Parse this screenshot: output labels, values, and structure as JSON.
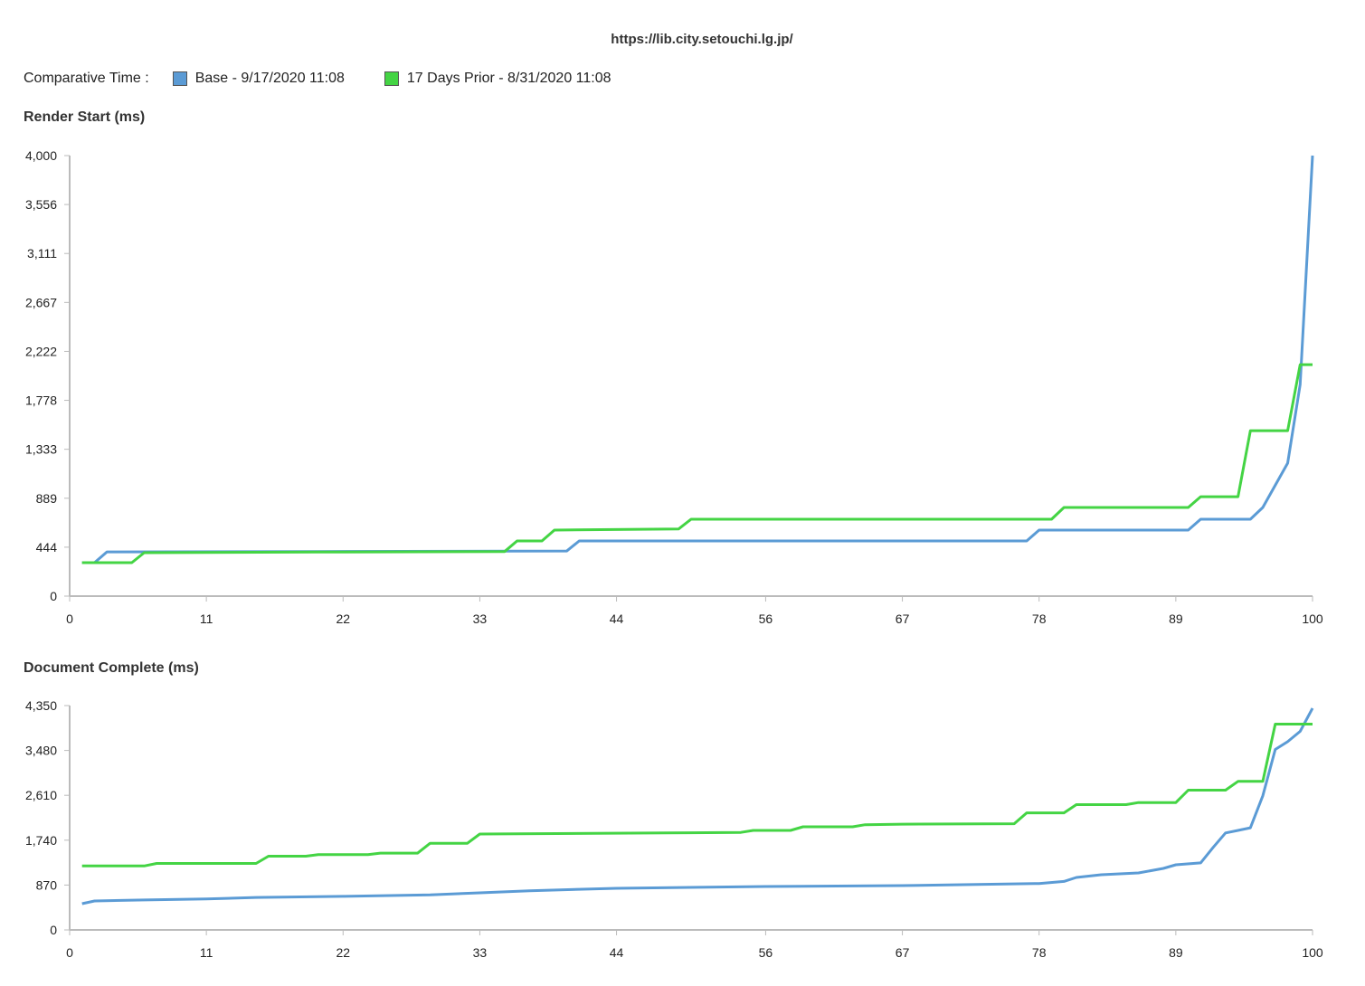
{
  "header": {
    "url": "https://lib.city.setouchi.lg.jp/"
  },
  "legend": {
    "label": "Comparative Time :",
    "items": [
      {
        "name": "Base - 9/17/2020 11:08",
        "color": "#5b9bd5"
      },
      {
        "name": "17 Days Prior - 8/31/2020 11:08",
        "color": "#44d444"
      }
    ]
  },
  "chart_data": [
    {
      "type": "line",
      "title": "Render Start (ms)",
      "xlabel": "",
      "ylabel": "",
      "xlim": [
        0,
        100
      ],
      "ylim": [
        0,
        4000
      ],
      "xticks": [
        "0",
        "11",
        "22",
        "33",
        "44",
        "56",
        "67",
        "78",
        "89",
        "100"
      ],
      "yticks": [
        "0",
        "444",
        "889",
        "1,333",
        "1,778",
        "2,222",
        "2,667",
        "3,111",
        "3,556",
        "4,000"
      ],
      "series": [
        {
          "name": "Base - 9/17/2020 11:08",
          "color": "#5b9bd5",
          "points": [
            [
              1,
              304
            ],
            [
              2,
              304
            ],
            [
              3,
              402
            ],
            [
              20,
              405
            ],
            [
              40,
              410
            ],
            [
              41,
              501
            ],
            [
              77,
              501
            ],
            [
              78,
              600
            ],
            [
              90,
              600
            ],
            [
              91,
              698
            ],
            [
              95,
              698
            ],
            [
              96,
              805
            ],
            [
              98,
              1207
            ],
            [
              99,
              1921
            ],
            [
              100,
              4000
            ]
          ]
        },
        {
          "name": "17 Days Prior - 8/31/2020 11:08",
          "color": "#44d444",
          "points": [
            [
              1,
              304
            ],
            [
              5,
              304
            ],
            [
              6,
              394
            ],
            [
              20,
              400
            ],
            [
              35,
              405
            ],
            [
              36,
              501
            ],
            [
              38,
              501
            ],
            [
              39,
              600
            ],
            [
              49,
              610
            ],
            [
              50,
              698
            ],
            [
              79,
              698
            ],
            [
              80,
              805
            ],
            [
              90,
              805
            ],
            [
              91,
              903
            ],
            [
              94,
              903
            ],
            [
              95,
              1502
            ],
            [
              98,
              1502
            ],
            [
              99,
              2102
            ],
            [
              100,
              2102
            ]
          ]
        }
      ]
    },
    {
      "type": "line",
      "title": "Document Complete (ms)",
      "xlabel": "",
      "ylabel": "",
      "xlim": [
        0,
        100
      ],
      "ylim": [
        0,
        4350
      ],
      "xticks": [
        "0",
        "11",
        "22",
        "33",
        "44",
        "56",
        "67",
        "78",
        "89",
        "100"
      ],
      "yticks": [
        "0",
        "870",
        "1,740",
        "2,610",
        "3,480",
        "4,350"
      ],
      "series": [
        {
          "name": "Base - 9/17/2020 11:08",
          "color": "#5b9bd5",
          "points": [
            [
              1,
              509
            ],
            [
              2,
              561
            ],
            [
              6,
              580
            ],
            [
              11,
              600
            ],
            [
              15,
              630
            ],
            [
              22,
              650
            ],
            [
              29,
              680
            ],
            [
              33,
              719
            ],
            [
              37,
              760
            ],
            [
              44,
              807
            ],
            [
              56,
              842
            ],
            [
              67,
              860
            ],
            [
              78,
              900
            ],
            [
              80,
              940
            ],
            [
              81,
              1017
            ],
            [
              83,
              1070
            ],
            [
              86,
              1105
            ],
            [
              88,
              1193
            ],
            [
              89,
              1263
            ],
            [
              91,
              1300
            ],
            [
              92,
              1600
            ],
            [
              93,
              1880
            ],
            [
              94,
              1930
            ],
            [
              95,
              1980
            ],
            [
              96,
              2600
            ],
            [
              97,
              3500
            ],
            [
              98,
              3650
            ],
            [
              99,
              3850
            ],
            [
              100,
              4300
            ]
          ]
        },
        {
          "name": "17 Days Prior - 8/31/2020 11:08",
          "color": "#44d444",
          "points": [
            [
              1,
              1240
            ],
            [
              6,
              1240
            ],
            [
              7,
              1290
            ],
            [
              15,
              1290
            ],
            [
              16,
              1430
            ],
            [
              19,
              1430
            ],
            [
              20,
              1460
            ],
            [
              24,
              1460
            ],
            [
              25,
              1490
            ],
            [
              28,
              1490
            ],
            [
              29,
              1680
            ],
            [
              32,
              1680
            ],
            [
              33,
              1860
            ],
            [
              48,
              1880
            ],
            [
              54,
              1890
            ],
            [
              55,
              1930
            ],
            [
              58,
              1930
            ],
            [
              59,
              2000
            ],
            [
              63,
              2000
            ],
            [
              64,
              2040
            ],
            [
              67,
              2050
            ],
            [
              76,
              2060
            ],
            [
              77,
              2270
            ],
            [
              80,
              2270
            ],
            [
              81,
              2430
            ],
            [
              85,
              2430
            ],
            [
              86,
              2470
            ],
            [
              89,
              2470
            ],
            [
              90,
              2710
            ],
            [
              93,
              2710
            ],
            [
              94,
              2880
            ],
            [
              96,
              2880
            ],
            [
              97,
              3990
            ],
            [
              100,
              3990
            ]
          ]
        }
      ]
    }
  ]
}
